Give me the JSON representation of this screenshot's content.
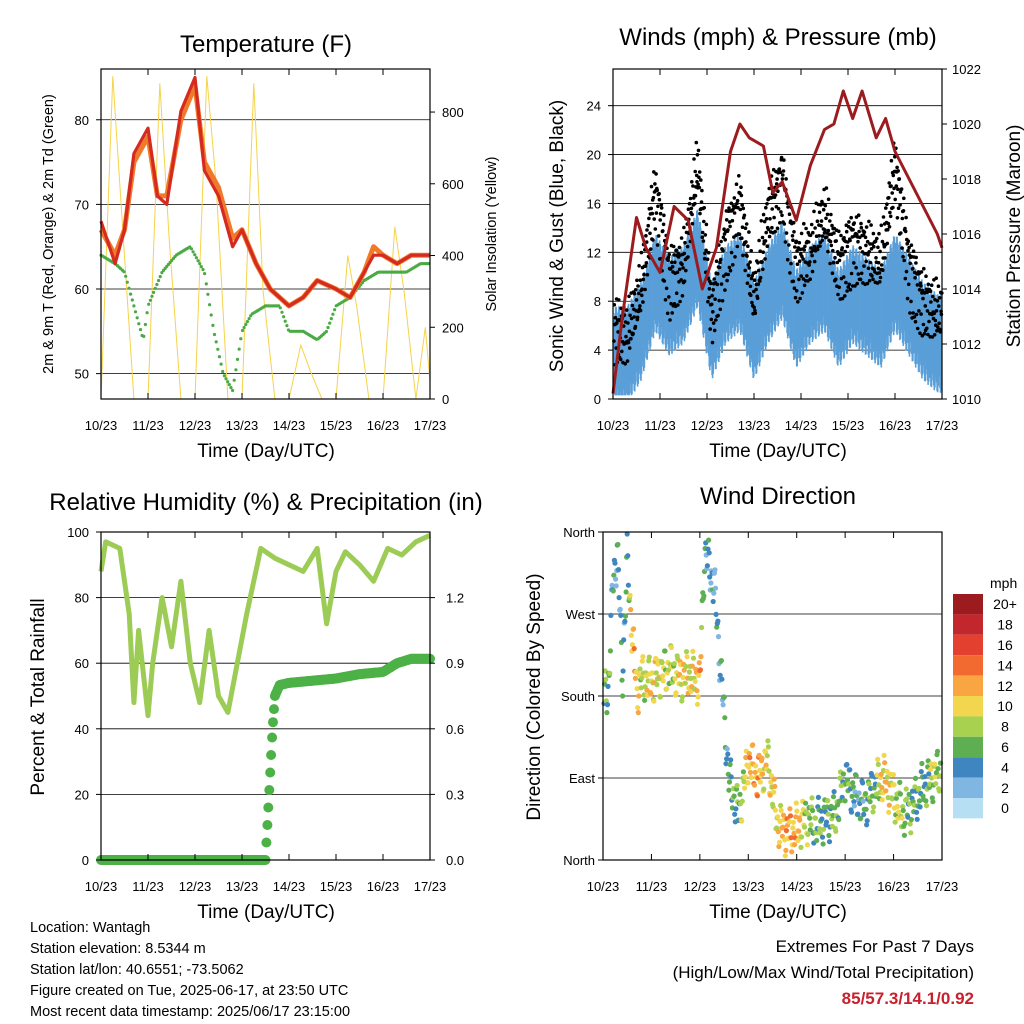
{
  "x_tick_labels": [
    "10/23",
    "11/23",
    "12/23",
    "13/23",
    "14/23",
    "15/23",
    "16/23",
    "17/23"
  ],
  "panels": {
    "temperature": {
      "title": "Temperature (F)",
      "xlabel": "Time (Day/UTC)",
      "ylabel_left": "2m & 9m T (Red, Orange) & 2m Td (Green)",
      "ylabel_right": "Solar Insolation (Yellow)",
      "left_ticks": [
        "50",
        "60",
        "70",
        "80"
      ],
      "right_ticks": [
        "0",
        "200",
        "400",
        "600",
        "800"
      ]
    },
    "winds": {
      "title": "Winds (mph) & Pressure (mb)",
      "xlabel": "Time (Day/UTC)",
      "ylabel_left": "Sonic Wind & Gust (Blue, Black)",
      "ylabel_right": "Station Pressure (Maroon)",
      "left_ticks": [
        "0",
        "4",
        "8",
        "12",
        "16",
        "20",
        "24"
      ],
      "right_ticks": [
        "1010",
        "1012",
        "1014",
        "1016",
        "1018",
        "1020",
        "1022"
      ]
    },
    "humidity": {
      "title": "Relative Humidity (%) & Precipitation (in)",
      "xlabel": "Time (Day/UTC)",
      "ylabel_left": "Percent & Total Rainfall",
      "left_ticks": [
        "0",
        "20",
        "40",
        "60",
        "80",
        "100"
      ],
      "right_ticks": [
        "0.0",
        "0.3",
        "0.6",
        "0.9",
        "1.2"
      ]
    },
    "direction": {
      "title": "Wind Direction",
      "xlabel": "Time (Day/UTC)",
      "ylabel_left": "Direction (Colored By Speed)",
      "left_ticks": [
        "North",
        "East",
        "South",
        "West",
        "North"
      ],
      "legend_title": "mph",
      "legend_labels": [
        "20+",
        "18",
        "16",
        "14",
        "12",
        "10",
        "8",
        "6",
        "4",
        "2",
        "0"
      ],
      "legend_colors": [
        "#9b1b1e",
        "#c1272d",
        "#e3402f",
        "#f26a30",
        "#f8a542",
        "#f2d64e",
        "#a8d14f",
        "#5daf52",
        "#3f86c1",
        "#7fb6e2",
        "#b7dff4"
      ]
    }
  },
  "footer": {
    "location": "Location: Wantagh",
    "elevation": "Station elevation: 8.5344 m",
    "latlon": "Station lat/lon: 40.6551; -73.5062",
    "created": "Figure created on Tue, 2025-06-17, at 23:50 UTC",
    "recent": "Most recent data timestamp: 2025/06/17 23:15:00",
    "extremes_title": "Extremes For Past 7 Days",
    "extremes_sub": "(High/Low/Max Wind/Total Precipitation)",
    "extremes_value": "85/57.3/14.1/0.92"
  },
  "colors": {
    "temp_2m": "#d42a20",
    "temp_9m": "#f07a2a",
    "dewpoint": "#4aaa44",
    "solar": "#f5d34a",
    "gust": "#000000",
    "wind": "#5a9fd8",
    "pressure": "#9b1b1e",
    "rh": "#9ccc55",
    "precip": "#4cb146"
  },
  "chart_data": [
    {
      "type": "line",
      "title": "Temperature (F)",
      "xlabel": "Time (Day/UTC)",
      "ylabel": "2m & 9m T (Red, Orange) & 2m Td (Green)",
      "y2label": "Solar Insolation (Yellow)",
      "ylim": [
        47,
        86
      ],
      "y2lim": [
        0,
        920
      ],
      "xlim_days": [
        10,
        17
      ],
      "series": [
        {
          "name": "2m T",
          "axis": "left",
          "x": [
            10.0,
            10.3,
            10.5,
            10.7,
            11.0,
            11.2,
            11.4,
            11.7,
            12.0,
            12.2,
            12.5,
            12.8,
            13.0,
            13.3,
            13.6,
            14.0,
            14.3,
            14.6,
            15.0,
            15.3,
            15.6,
            15.8,
            16.0,
            16.3,
            16.6,
            17.0
          ],
          "y": [
            68,
            63,
            67,
            76,
            79,
            71,
            70,
            81,
            85,
            74,
            71,
            65,
            67,
            63,
            60,
            58,
            59,
            61,
            60,
            59,
            62,
            64,
            64,
            63,
            64,
            64
          ]
        },
        {
          "name": "9m T",
          "axis": "left",
          "x": [
            10.0,
            10.3,
            10.5,
            10.7,
            11.0,
            11.2,
            11.4,
            11.7,
            12.0,
            12.2,
            12.5,
            12.8,
            13.0,
            13.3,
            13.6,
            14.0,
            14.3,
            14.6,
            15.0,
            15.3,
            15.6,
            15.8,
            16.0,
            16.3,
            16.6,
            17.0
          ],
          "y": [
            67,
            64,
            67,
            75,
            78,
            71,
            71,
            80,
            84,
            75,
            72,
            66,
            67,
            63,
            60,
            58,
            59,
            61,
            60,
            59,
            62,
            65,
            64,
            63,
            64,
            64
          ]
        },
        {
          "name": "2m Td",
          "axis": "left",
          "x": [
            10.0,
            10.3,
            10.5,
            10.7,
            10.9,
            11.0,
            11.3,
            11.6,
            11.9,
            12.2,
            12.4,
            12.6,
            12.8,
            13.0,
            13.2,
            13.5,
            13.8,
            14.0,
            14.3,
            14.6,
            14.8,
            15.0,
            15.3,
            15.6,
            15.9,
            16.2,
            16.5,
            16.8,
            17.0
          ],
          "y": [
            64,
            63,
            62,
            58,
            54,
            58,
            62,
            64,
            65,
            62,
            55,
            50,
            48,
            55,
            57,
            58,
            58,
            55,
            55,
            54,
            55,
            58,
            59,
            61,
            62,
            62,
            62,
            63,
            63
          ]
        },
        {
          "name": "Solar Insolation",
          "axis": "right",
          "x": [
            10.0,
            10.25,
            10.45,
            10.7,
            11.0,
            11.25,
            11.45,
            11.7,
            12.0,
            12.25,
            12.45,
            12.7,
            13.0,
            13.25,
            13.45,
            13.7,
            14.0,
            14.25,
            14.45,
            14.7,
            15.0,
            15.25,
            15.45,
            15.7,
            16.0,
            16.25,
            16.45,
            16.7,
            16.9,
            17.0
          ],
          "y": [
            0,
            900,
            500,
            0,
            0,
            880,
            450,
            0,
            0,
            900,
            600,
            0,
            0,
            880,
            300,
            0,
            0,
            150,
            80,
            0,
            0,
            400,
            250,
            0,
            0,
            480,
            300,
            0,
            200,
            50
          ]
        }
      ]
    },
    {
      "type": "line",
      "title": "Winds (mph) & Pressure (mb)",
      "xlabel": "Time (Day/UTC)",
      "ylabel": "Sonic Wind & Gust (Blue, Black)",
      "y2label": "Station Pressure (Maroon)",
      "ylim": [
        0,
        27
      ],
      "y2lim": [
        1010,
        1022
      ],
      "xlim_days": [
        10,
        17
      ],
      "series": [
        {
          "name": "Sonic Wind",
          "axis": "left",
          "x": [
            10.0,
            10.3,
            10.6,
            10.9,
            11.2,
            11.5,
            11.8,
            12.1,
            12.4,
            12.7,
            13.0,
            13.3,
            13.6,
            13.9,
            14.2,
            14.5,
            14.8,
            15.1,
            15.4,
            15.7,
            16.0,
            16.3,
            16.6,
            16.9,
            17.0
          ],
          "y": [
            4,
            4,
            6,
            10,
            8,
            9,
            12,
            6,
            9,
            10,
            6,
            9,
            11,
            7,
            9,
            10,
            7,
            9,
            8,
            7,
            10,
            8,
            6,
            5,
            5
          ]
        },
        {
          "name": "Gust",
          "axis": "left",
          "x": [
            10.0,
            10.3,
            10.6,
            10.9,
            11.2,
            11.5,
            11.8,
            12.1,
            12.4,
            12.7,
            13.0,
            13.3,
            13.6,
            13.9,
            14.2,
            14.5,
            14.8,
            15.1,
            15.4,
            15.7,
            16.0,
            16.3,
            16.6,
            16.9,
            17.0
          ],
          "y": [
            7,
            6,
            10,
            18,
            11,
            12,
            20,
            8,
            14,
            17,
            9,
            16,
            19,
            12,
            13,
            16,
            12,
            14,
            13,
            12,
            20,
            12,
            9,
            8,
            8
          ]
        },
        {
          "name": "Station Pressure",
          "axis": "right",
          "x": [
            10.0,
            10.2,
            10.5,
            10.7,
            11.0,
            11.3,
            11.6,
            11.9,
            12.2,
            12.5,
            12.7,
            12.9,
            13.2,
            13.4,
            13.6,
            13.9,
            14.2,
            14.5,
            14.7,
            14.9,
            15.1,
            15.3,
            15.6,
            15.8,
            16.0,
            16.3,
            16.6,
            16.9,
            17.0
          ],
          "y": [
            1010.2,
            1013,
            1016.6,
            1015.5,
            1014.6,
            1017,
            1016.5,
            1014,
            1015.5,
            1019,
            1020,
            1019.5,
            1019.2,
            1017.5,
            1017.9,
            1016.5,
            1018.5,
            1019.8,
            1020,
            1021.2,
            1020.2,
            1021.2,
            1019.5,
            1020.2,
            1019,
            1018,
            1017,
            1016,
            1015.5
          ]
        }
      ]
    },
    {
      "type": "line",
      "title": "Relative Humidity (%) & Precipitation (in)",
      "xlabel": "Time (Day/UTC)",
      "ylabel": "Percent & Total Rainfall",
      "ylim": [
        0,
        100
      ],
      "y2lim": [
        0,
        1.5
      ],
      "xlim_days": [
        10,
        17
      ],
      "series": [
        {
          "name": "Relative Humidity",
          "axis": "left",
          "x": [
            10.0,
            10.1,
            10.4,
            10.6,
            10.7,
            10.8,
            11.0,
            11.1,
            11.3,
            11.5,
            11.7,
            11.9,
            12.1,
            12.3,
            12.5,
            12.7,
            12.9,
            13.1,
            13.4,
            13.7,
            14.0,
            14.3,
            14.6,
            14.8,
            15.0,
            15.2,
            15.5,
            15.8,
            16.1,
            16.4,
            16.7,
            17.0
          ],
          "y": [
            88,
            97,
            95,
            75,
            48,
            70,
            44,
            60,
            80,
            65,
            85,
            60,
            48,
            70,
            50,
            45,
            60,
            75,
            95,
            92,
            90,
            88,
            95,
            72,
            88,
            94,
            90,
            85,
            95,
            93,
            97,
            99
          ]
        },
        {
          "name": "Total Precipitation",
          "axis": "right",
          "x": [
            10.0,
            13.5,
            13.55,
            13.6,
            13.65,
            13.7,
            13.8,
            14.0,
            14.5,
            15.0,
            15.5,
            16.0,
            16.3,
            16.6,
            17.0
          ],
          "y": [
            0,
            0,
            0.2,
            0.4,
            0.6,
            0.75,
            0.8,
            0.81,
            0.82,
            0.83,
            0.85,
            0.86,
            0.9,
            0.92,
            0.92
          ]
        }
      ]
    },
    {
      "type": "scatter",
      "title": "Wind Direction",
      "xlabel": "Time (Day/UTC)",
      "ylabel": "Direction (Colored By Speed)",
      "ylim_deg": [
        0,
        360
      ],
      "xlim_days": [
        10,
        17
      ],
      "color_scale_mph": [
        0,
        20
      ],
      "series": [
        {
          "name": "Wind Direction",
          "x": [
            10.1,
            10.2,
            10.3,
            10.4,
            10.5,
            10.6,
            10.7,
            10.8,
            11.0,
            11.2,
            11.4,
            11.6,
            11.8,
            12.0,
            12.1,
            12.3,
            12.6,
            12.8,
            13.0,
            13.2,
            13.4,
            13.6,
            13.8,
            14.0,
            14.2,
            14.4,
            14.6,
            14.8,
            15.0,
            15.2,
            15.4,
            15.6,
            15.8,
            16.0,
            16.2,
            16.4,
            16.6,
            16.8,
            17.0
          ],
          "y": [
            180,
            300,
            340,
            200,
            330,
            250,
            185,
            200,
            195,
            205,
            210,
            200,
            205,
            195,
            340,
            300,
            90,
            50,
            110,
            90,
            110,
            40,
            30,
            35,
            45,
            40,
            45,
            50,
            90,
            70,
            60,
            80,
            90,
            70,
            50,
            60,
            80,
            90,
            100
          ],
          "speed": [
            6,
            4,
            3,
            5,
            4,
            12,
            11,
            8,
            10,
            9,
            8,
            10,
            9,
            12,
            4,
            3,
            5,
            6,
            11,
            12,
            9,
            10,
            12,
            11,
            8,
            6,
            5,
            7,
            6,
            4,
            5,
            6,
            11,
            9,
            7,
            6,
            5,
            8,
            6
          ]
        }
      ]
    }
  ]
}
